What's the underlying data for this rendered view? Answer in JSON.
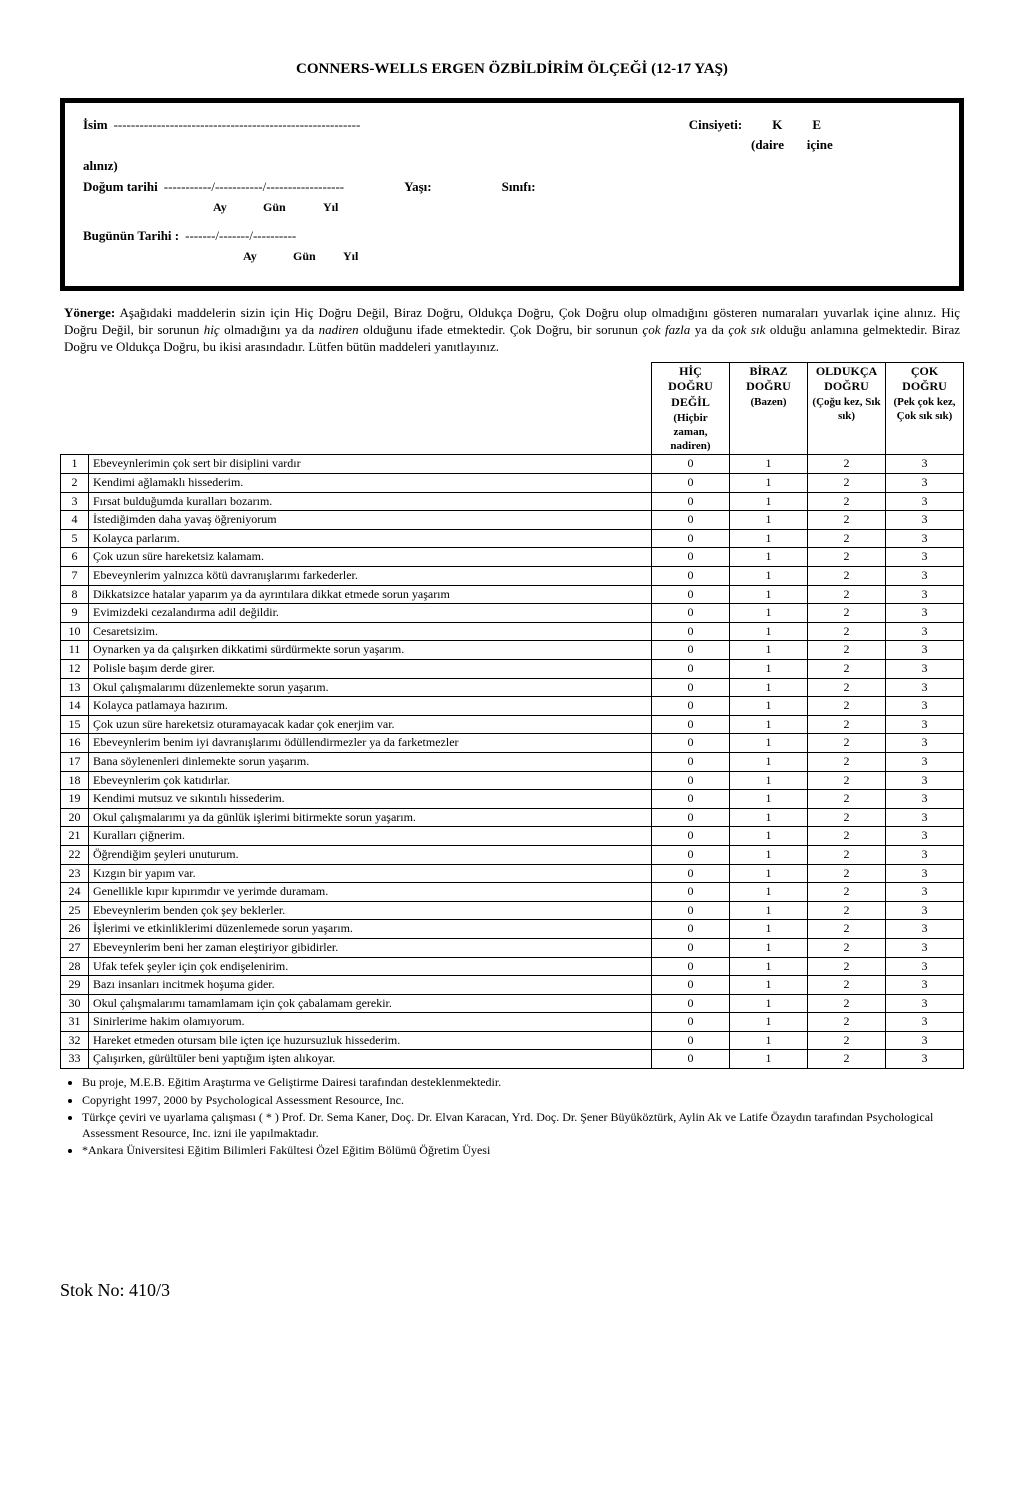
{
  "title": "CONNERS-WELLS ERGEN ÖZBİLDİRİM ÖLÇEĞİ (12-17 YAŞ)",
  "form": {
    "name_label": "İsim",
    "name_dashes": "---------------------------------------------------------",
    "gender_label": "Cinsiyeti:",
    "gender_k": "K",
    "gender_e": "E",
    "circle_hint_1": "(daire",
    "circle_hint_2": "içine",
    "aliniz": "alınız)",
    "birth_label": "Doğum tarihi",
    "birth_dashes": "-----------/-----------/------------------",
    "age_label": "Yaşı:",
    "class_label": "Sınıfı:",
    "ay": "Ay",
    "gun": "Gün",
    "yil": "Yıl",
    "today_label": "Bugünün Tarihi :",
    "today_dashes": "-------/-------/----------"
  },
  "instr": {
    "label": "Yönerge:",
    "text1": " Aşağıdaki maddelerin sizin için Hiç Doğru Değil, Biraz Doğru, Oldukça Doğru, Çok Doğru olup olmadığını gösteren numaraları yuvarlak içine alınız. Hiç Doğru Değil, bir sorunun ",
    "italic1": "hiç",
    "text2": " olmadığını ya da ",
    "italic2": "nadiren",
    "text3": " olduğunu ifade etmektedir. Çok Doğru, bir sorunun ",
    "italic3": "çok fazla",
    "text4": " ya da ",
    "italic4": "çok sık",
    "text5": " olduğu anlamına gelmektedir. Biraz Doğru ve Oldukça Doğru, bu ikisi arasındadır. Lütfen bütün maddeleri yanıtlayınız."
  },
  "headers": {
    "h1a": "HİÇ DOĞRU DEĞİL",
    "h1b": "(Hiçbir zaman, nadiren)",
    "h2a": "BİRAZ DOĞRU",
    "h2b": "(Bazen)",
    "h3a": "OLDUKÇA DOĞRU",
    "h3b": "(Çoğu kez, Sık sık)",
    "h4a": "ÇOK DOĞRU",
    "h4b": "(Pek çok kez, Çok sık sık)"
  },
  "opts": [
    "0",
    "1",
    "2",
    "3"
  ],
  "items": [
    "Ebeveynlerimin çok sert bir disiplini vardır",
    "Kendimi ağlamaklı hissederim.",
    "Fırsat bulduğumda kuralları bozarım.",
    "İstediğimden daha yavaş öğreniyorum",
    "Kolayca parlarım.",
    "Çok uzun süre hareketsiz kalamam.",
    "Ebeveynlerim yalnızca kötü davranışlarımı farkederler.",
    "Dikkatsizce hatalar yaparım ya da ayrıntılara dikkat etmede sorun yaşarım",
    "Evimizdeki cezalandırma adil değildir.",
    "Cesaretsizim.",
    "Oynarken ya da çalışırken dikkatimi sürdürmekte sorun yaşarım.",
    "Polisle başım derde girer.",
    "Okul çalışmalarımı düzenlemekte sorun yaşarım.",
    "Kolayca patlamaya hazırım.",
    "Çok uzun süre hareketsiz oturamayacak kadar çok enerjim var.",
    "Ebeveynlerim benim iyi davranışlarımı ödüllendirmezler ya da farketmezler",
    "Bana söylenenleri dinlemekte sorun yaşarım.",
    "Ebeveynlerim çok katıdırlar.",
    "Kendimi mutsuz ve sıkıntılı hissederim.",
    "Okul çalışmalarımı ya da günlük işlerimi bitirmekte sorun yaşarım.",
    "Kuralları çiğnerim.",
    "Öğrendiğim şeyleri unuturum.",
    "Kızgın bir yapım var.",
    "Genellikle kıpır kıpırımdır ve yerimde duramam.",
    "Ebeveynlerim benden çok şey beklerler.",
    "İşlerimi ve etkinliklerimi düzenlemede sorun yaşarım.",
    "Ebeveynlerim beni her zaman eleştiriyor gibidirler.",
    "Ufak tefek şeyler için çok endişelenirim.",
    "Bazı insanları incitmek hoşuma gider.",
    "Okul çalışmalarımı tamamlamam için çok çabalamam gerekir.",
    "Sinirlerime hakim olamıyorum.",
    "Hareket etmeden otursam bile içten içe huzursuzluk hissederim.",
    "Çalışırken, gürültüler beni yaptığım işten alıkoyar."
  ],
  "footer": [
    "Bu proje, M.E.B. Eğitim Araştırma ve Geliştirme Dairesi tarafından desteklenmektedir.",
    "Copyright 1997, 2000 by Psychological Assessment Resource, Inc.",
    "Türkçe çeviri ve uyarlama çalışması ( * ) Prof. Dr. Sema Kaner, Doç. Dr. Elvan Karacan, Yrd. Doç. Dr. Şener Büyüköztürk, Aylin Ak ve Latife Özaydın tarafından Psychological Assessment Resource, Inc. izni ile yapılmaktadır.",
    "*Ankara Üniversitesi Eğitim Bilimleri Fakültesi Özel Eğitim Bölümü Öğretim Üyesi"
  ],
  "stock": "Stok No: 410/3"
}
